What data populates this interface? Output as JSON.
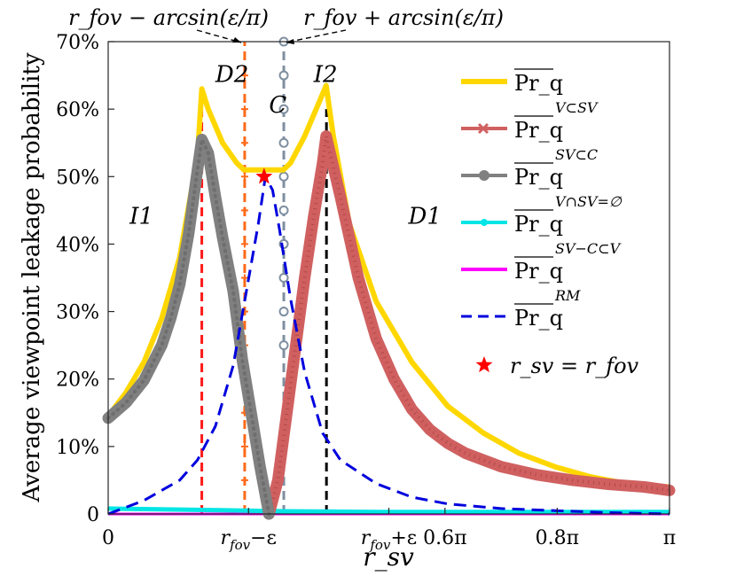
{
  "chart_data": {
    "type": "line",
    "title": "",
    "ylabel": "Average viewpoint leakage probability",
    "xlabel": "r_sv",
    "xlim": [
      0,
      3.14159
    ],
    "ylim": [
      0,
      70
    ],
    "xticks": [
      {
        "v": 0,
        "label": "0"
      },
      {
        "v": 0.7854,
        "label": "r_fov−ε"
      },
      {
        "v": 1.5708,
        "label": "r_fov+ε"
      },
      {
        "v": 1.885,
        "label": "0.6π"
      },
      {
        "v": 2.513,
        "label": "0.8π"
      },
      {
        "v": 3.1416,
        "label": "π"
      }
    ],
    "yticks": [
      {
        "v": 0,
        "label": "0"
      },
      {
        "v": 10,
        "label": "10%"
      },
      {
        "v": 20,
        "label": "20%"
      },
      {
        "v": 30,
        "label": "30%"
      },
      {
        "v": 40,
        "label": "40%"
      },
      {
        "v": 50,
        "label": "50%"
      },
      {
        "v": 60,
        "label": "60%"
      },
      {
        "v": 70,
        "label": "70%"
      }
    ],
    "annotations": {
      "left_top": "r_fov − arcsin(ε/π)",
      "right_top": "r_fov + arcsin(ε/π)",
      "regions": [
        {
          "label": "D2",
          "x": 0.6,
          "y": 64
        },
        {
          "label": "I2",
          "x": 1.15,
          "y": 64
        },
        {
          "label": "C",
          "x": 0.9,
          "y": 59.5
        },
        {
          "label": "I1",
          "x": 0.12,
          "y": 43
        },
        {
          "label": "D1",
          "x": 1.68,
          "y": 43
        }
      ]
    },
    "vlines": [
      {
        "x": 0.524,
        "ymax": 60,
        "color": "#ff1a1a"
      },
      {
        "x": 0.7639,
        "ymax": 70,
        "color": "#ff6a1a"
      },
      {
        "x": 0.9829,
        "ymax": 70,
        "color": "#7f8fa0"
      },
      {
        "x": 1.2217,
        "ymax": 60,
        "color": "#000000"
      }
    ],
    "series": [
      {
        "name": "Pr_q",
        "sup": "",
        "color": "#ffd700",
        "x": [
          0,
          0.1,
          0.2,
          0.3,
          0.4,
          0.5,
          0.524,
          0.56,
          0.64,
          0.72,
          0.76,
          0.8,
          0.86,
          0.92,
          0.98,
          1.02,
          1.1,
          1.18,
          1.22,
          1.26,
          1.35,
          1.5,
          1.7,
          1.9,
          2.1,
          2.3,
          2.5,
          2.7,
          2.9,
          3.1416
        ],
        "y": [
          14.5,
          18,
          22.5,
          29,
          38,
          53,
          63,
          60,
          55,
          52,
          51,
          51,
          51,
          51,
          51,
          52,
          56,
          61,
          63.5,
          56,
          43,
          31.5,
          22.5,
          16,
          12,
          9,
          7,
          5.5,
          4.5,
          4
        ]
      },
      {
        "name": "Pr_q",
        "sup": "V⊂SV",
        "color": "#d06060",
        "x": [
          0.9,
          0.95,
          1.0,
          1.05,
          1.1,
          1.15,
          1.2,
          1.22,
          1.3,
          1.4,
          1.5,
          1.6,
          1.7,
          1.8,
          1.9,
          2.0,
          2.2,
          2.4,
          2.6,
          2.8,
          3.0,
          3.1416
        ],
        "y": [
          0,
          5,
          15,
          25,
          35,
          44,
          52,
          56,
          47,
          35,
          26,
          20,
          15.5,
          12.5,
          10.5,
          9,
          7,
          5.8,
          5,
          4.4,
          4,
          3.5
        ]
      },
      {
        "name": "Pr_q",
        "sup": "SV⊂C",
        "color": "#808080",
        "x": [
          0,
          0.1,
          0.2,
          0.3,
          0.35,
          0.4,
          0.45,
          0.5,
          0.524,
          0.56,
          0.6,
          0.64,
          0.7,
          0.75,
          0.8,
          0.85,
          0.9
        ],
        "y": [
          14.2,
          16.5,
          19.8,
          25,
          29,
          34,
          41.5,
          51,
          55.5,
          53.5,
          47,
          41,
          33,
          23,
          15,
          7,
          0
        ]
      },
      {
        "name": "Pr_q",
        "sup": "V∩SV=∅",
        "color": "#00e5e5",
        "x": [
          0,
          0.5,
          1.0,
          1.5,
          2.0,
          2.5,
          3.1416
        ],
        "y": [
          0.8,
          0.6,
          0.4,
          0.3,
          0.3,
          0.3,
          0.3
        ]
      },
      {
        "name": "Pr_q",
        "sup": "SV−C⊂V",
        "color": "#ff00ff",
        "x": [
          0,
          0.5,
          1.0,
          1.5,
          2.0,
          2.5,
          3.1416
        ],
        "y": [
          0,
          0,
          0,
          0,
          0,
          0,
          0
        ]
      },
      {
        "name": "Pr_q",
        "sup": "RM",
        "color": "#0000dd",
        "x": [
          0,
          0.2,
          0.4,
          0.5,
          0.6,
          0.7,
          0.78,
          0.84,
          0.88,
          0.92,
          0.96,
          1.02,
          1.1,
          1.2,
          1.3,
          1.5,
          1.7,
          1.9,
          2.2,
          2.5,
          2.8,
          3.1416
        ],
        "y": [
          0,
          2,
          5,
          8,
          13,
          22,
          34,
          43,
          50,
          48,
          42,
          32,
          21,
          12,
          8,
          4.5,
          2.5,
          1.5,
          0.8,
          0.5,
          0.2,
          0
        ]
      }
    ],
    "marker": {
      "label": "r_sv = r_fov",
      "x": 0.8727,
      "y": 50,
      "color": "#ff0000"
    },
    "legend_position": "right"
  }
}
